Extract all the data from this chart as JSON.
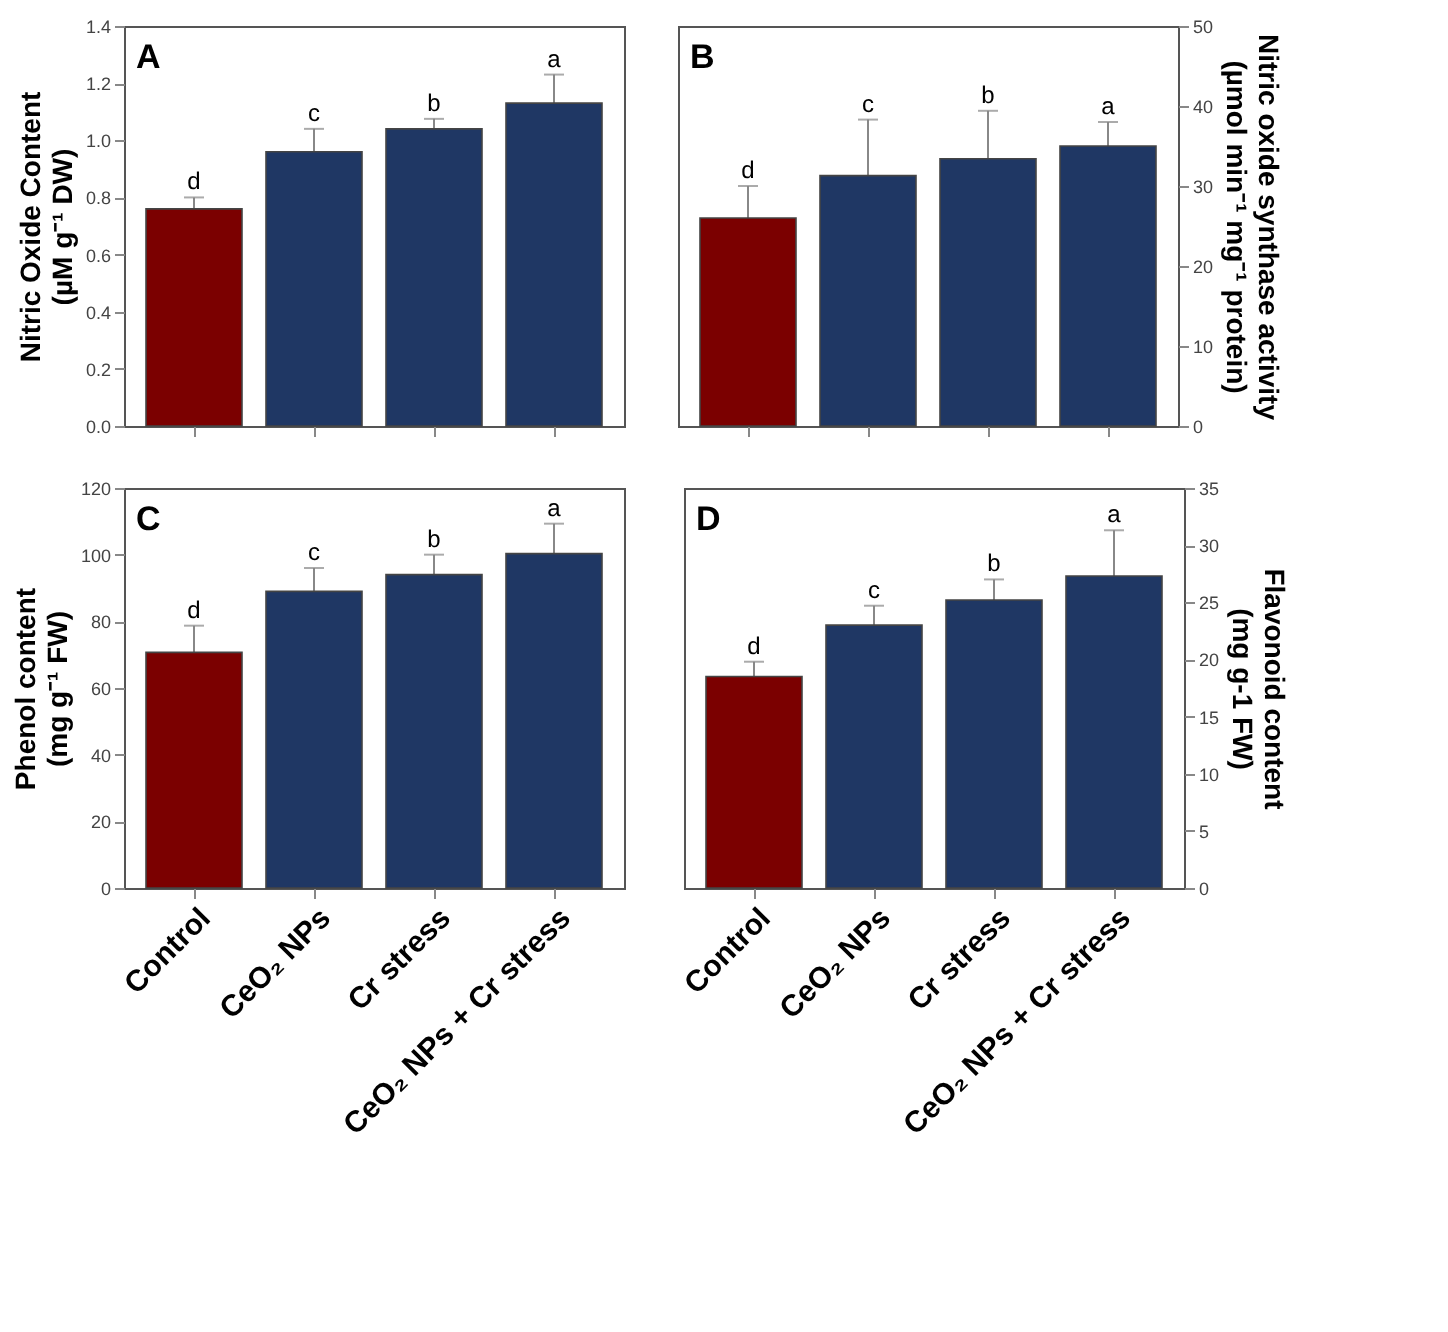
{
  "chart_data": [
    {
      "type": "bar",
      "title": "A",
      "ylabel": "Nitric Oxide Content\n(µM g⁻¹ DW)",
      "categories": [
        "Control",
        "CeO₂ NPs",
        "Cr stress",
        "CeO₂ NPs + Cr stress"
      ],
      "values": [
        0.76,
        0.96,
        1.04,
        1.13
      ],
      "colors": [
        "#7b0000",
        "#1f3764",
        "#1f3764",
        "#1f3764"
      ],
      "errors": [
        0.04,
        0.08,
        0.035,
        0.1
      ],
      "ylim": [
        0,
        1.4
      ],
      "yticks": [
        {
          "value": 0,
          "label": "0.0"
        },
        {
          "value": 0.2,
          "label": "0.2"
        },
        {
          "value": 0.4,
          "label": "0.4"
        },
        {
          "value": 0.6,
          "label": "0.6"
        },
        {
          "value": 0.8,
          "label": "0.8"
        },
        {
          "value": 1,
          "label": "1.0"
        },
        {
          "value": 1.2,
          "label": "1.2"
        },
        {
          "value": 1.4,
          "label": "1.4"
        }
      ],
      "tick_labels": "y",
      "grid": false,
      "annotations": [
        {
          "text": "d",
          "x": "Control",
          "y": 0.8
        },
        {
          "text": "c",
          "x": "CeO₂ NPs",
          "y": 1.04
        },
        {
          "text": "b",
          "x": "Cr stress",
          "y": 1.075
        },
        {
          "text": "a",
          "x": "CeO₂ NPs + Cr stress",
          "y": 1.23
        }
      ]
    },
    {
      "type": "bar",
      "title": "B",
      "ylabel": "Nitric oxide synthase activity\n(µmol min⁻¹ mg⁻¹ protein)",
      "categories": [
        "Control",
        "CeO₂ NPs",
        "Cr stress",
        "CeO₂ NPs + Cr stress"
      ],
      "values": [
        26,
        31.3,
        33.4,
        35
      ],
      "colors": [
        "#7b0000",
        "#1f3764",
        "#1f3764",
        "#1f3764"
      ],
      "errors": [
        4,
        7,
        6,
        3
      ],
      "ylim": [
        0,
        50
      ],
      "yticks": [
        0,
        10,
        20,
        30,
        40,
        50
      ],
      "tick_labels": "y",
      "grid": false,
      "annotations": [
        {
          "text": "d",
          "x": "Control",
          "y": 30
        },
        {
          "text": "c",
          "x": "CeO₂ NPs",
          "y": 38.3
        },
        {
          "text": "b",
          "x": "Cr stress",
          "y": 39.4
        },
        {
          "text": "a",
          "x": "CeO₂ NPs + Cr stress",
          "y": 38
        }
      ]
    },
    {
      "type": "bar",
      "title": "C",
      "ylabel": "Phenol content\n(mg g⁻¹ FW)",
      "categories": [
        "Control",
        "CeO₂ NPs",
        "Cr stress",
        "CeO₂ NPs + Cr stress"
      ],
      "values": [
        70.7,
        89,
        94,
        100.3
      ],
      "colors": [
        "#7b0000",
        "#1f3764",
        "#1f3764",
        "#1f3764"
      ],
      "errors": [
        8,
        7,
        6,
        9
      ],
      "ylim": [
        0,
        120
      ],
      "yticks": [
        0,
        20,
        40,
        60,
        80,
        100,
        120
      ],
      "grid": false,
      "annotations": [
        {
          "text": "d",
          "x": "Control",
          "y": 78.7
        },
        {
          "text": "c",
          "x": "CeO₂ NPs",
          "y": 96
        },
        {
          "text": "b",
          "x": "Cr stress",
          "y": 100
        },
        {
          "text": "a",
          "x": "CeO₂ NPs + Cr stress",
          "y": 109.3
        }
      ]
    },
    {
      "type": "bar",
      "title": "D",
      "ylabel": "Flavonoid content\n(mg g-1 FW)",
      "categories": [
        "Control",
        "CeO₂ NPs",
        "Cr stress",
        "CeO₂ NPs + Cr stress"
      ],
      "values": [
        18.5,
        23,
        25.2,
        27.3
      ],
      "colors": [
        "#7b0000",
        "#1f3764",
        "#1f3764",
        "#1f3764"
      ],
      "errors": [
        1.3,
        1.7,
        1.8,
        4
      ],
      "ylim": [
        0,
        35
      ],
      "yticks": [
        0,
        5,
        10,
        15,
        20,
        25,
        30,
        35
      ],
      "grid": false,
      "annotations": [
        {
          "text": "d",
          "x": "Control",
          "y": 19.8
        },
        {
          "text": "c",
          "x": "CeO₂ NPs",
          "y": 24.7
        },
        {
          "text": "b",
          "x": "Cr stress",
          "y": 27
        },
        {
          "text": "a",
          "x": "CeO₂ NPs + Cr stress",
          "y": 31.3
        }
      ]
    }
  ]
}
